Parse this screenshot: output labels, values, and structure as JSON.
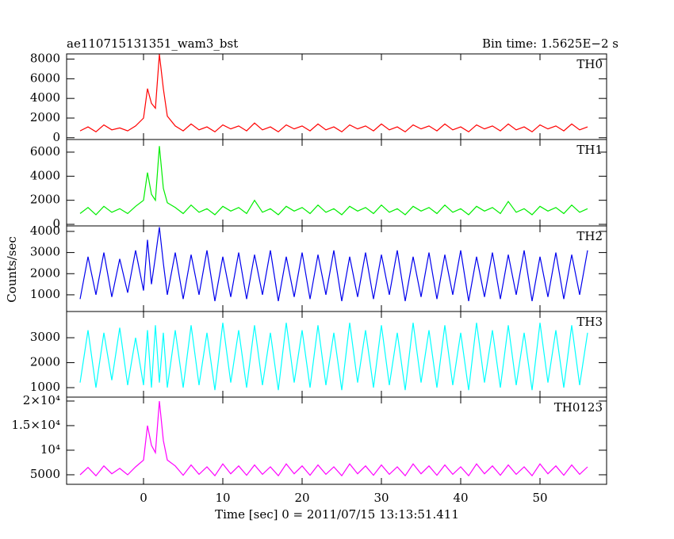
{
  "chart_data": [
    {
      "type": "line",
      "title": "ae110715131351_wam3_bst",
      "subtitle": "Bin time: 1.5625E−2 s",
      "x": [
        -8,
        -7,
        -6,
        -5,
        -4,
        -3,
        -2,
        -1,
        0,
        0.5,
        1,
        1.5,
        2,
        2.5,
        3,
        4,
        5,
        6,
        7,
        8,
        9,
        10,
        11,
        12,
        13,
        14,
        15,
        16,
        17,
        18,
        19,
        20,
        21,
        22,
        23,
        24,
        25,
        26,
        27,
        28,
        29,
        30,
        31,
        32,
        33,
        34,
        35,
        36,
        37,
        38,
        39,
        40,
        41,
        42,
        43,
        44,
        45,
        46,
        47,
        48,
        49,
        50,
        51,
        52,
        53,
        54,
        55,
        56
      ],
      "series": [
        {
          "name": "TH0",
          "color": "#ff0000",
          "values": [
            700,
            1100,
            600,
            1300,
            800,
            1000,
            700,
            1200,
            2000,
            5000,
            3500,
            3000,
            8500,
            5000,
            2200,
            1200,
            700,
            1400,
            800,
            1100,
            600,
            1300,
            900,
            1200,
            700,
            1500,
            800,
            1100,
            600,
            1300,
            900,
            1200,
            700,
            1400,
            800,
            1100,
            600,
            1300,
            900,
            1200,
            700,
            1400,
            800,
            1100,
            600,
            1300,
            900,
            1200,
            700,
            1400,
            800,
            1100,
            600,
            1300,
            900,
            1200,
            700,
            1400,
            800,
            1100,
            600,
            1300,
            900,
            1200,
            700,
            1400,
            800,
            1100
          ]
        }
      ],
      "ylim": [
        -180,
        8530
      ],
      "yticks": [
        0,
        2000,
        4000,
        6000,
        8000
      ]
    },
    {
      "type": "line",
      "x": [
        -8,
        -7,
        -6,
        -5,
        -4,
        -3,
        -2,
        -1,
        0,
        0.5,
        1,
        1.5,
        2,
        2.5,
        3,
        4,
        5,
        6,
        7,
        8,
        9,
        10,
        11,
        12,
        13,
        14,
        15,
        16,
        17,
        18,
        19,
        20,
        21,
        22,
        23,
        24,
        25,
        26,
        27,
        28,
        29,
        30,
        31,
        32,
        33,
        34,
        35,
        36,
        37,
        38,
        39,
        40,
        41,
        42,
        43,
        44,
        45,
        46,
        47,
        48,
        49,
        50,
        51,
        52,
        53,
        54,
        55,
        56
      ],
      "series": [
        {
          "name": "TH1",
          "color": "#00ee00",
          "values": [
            900,
            1400,
            800,
            1500,
            1000,
            1300,
            900,
            1500,
            2000,
            4300,
            2500,
            2000,
            6500,
            3000,
            1800,
            1400,
            900,
            1600,
            1000,
            1300,
            800,
            1500,
            1100,
            1400,
            900,
            2000,
            1000,
            1300,
            800,
            1500,
            1100,
            1400,
            900,
            1600,
            1000,
            1300,
            800,
            1500,
            1100,
            1400,
            900,
            1600,
            1000,
            1300,
            800,
            1500,
            1100,
            1400,
            900,
            1600,
            1000,
            1300,
            800,
            1500,
            1100,
            1400,
            900,
            1900,
            1000,
            1300,
            800,
            1500,
            1100,
            1400,
            900,
            1600,
            1000,
            1300
          ]
        }
      ],
      "ylim": [
        -130,
        7050
      ],
      "yticks": [
        0,
        2000,
        4000,
        6000
      ]
    },
    {
      "type": "line",
      "ylabel": "Counts/sec",
      "x": [
        -8,
        -7,
        -6,
        -5,
        -4,
        -3,
        -2,
        -1,
        0,
        0.5,
        1,
        1.5,
        2,
        2.5,
        3,
        4,
        5,
        6,
        7,
        8,
        9,
        10,
        11,
        12,
        13,
        14,
        15,
        16,
        17,
        18,
        19,
        20,
        21,
        22,
        23,
        24,
        25,
        26,
        27,
        28,
        29,
        30,
        31,
        32,
        33,
        34,
        35,
        36,
        37,
        38,
        39,
        40,
        41,
        42,
        43,
        44,
        45,
        46,
        47,
        48,
        49,
        50,
        51,
        52,
        53,
        54,
        55,
        56
      ],
      "series": [
        {
          "name": "TH2",
          "color": "#0000ee",
          "values": [
            800,
            2800,
            1000,
            3000,
            900,
            2700,
            1100,
            3100,
            1200,
            3600,
            1500,
            2800,
            4200,
            2500,
            1000,
            3000,
            800,
            2900,
            1000,
            3100,
            700,
            2800,
            900,
            3000,
            800,
            2900,
            1000,
            3100,
            700,
            2800,
            900,
            3000,
            800,
            2900,
            1000,
            3100,
            700,
            2800,
            900,
            3000,
            800,
            2900,
            1000,
            3100,
            700,
            2800,
            900,
            3000,
            800,
            2900,
            1000,
            3100,
            700,
            2800,
            900,
            3000,
            800,
            2900,
            1000,
            3100,
            700,
            2800,
            900,
            3000,
            800,
            2900,
            1000,
            3100
          ]
        }
      ],
      "ylim": [
        210,
        4260
      ],
      "yticks": [
        1000,
        2000,
        3000,
        4000
      ]
    },
    {
      "type": "line",
      "x": [
        -8,
        -7,
        -6,
        -5,
        -4,
        -3,
        -2,
        -1,
        0,
        0.5,
        1,
        1.5,
        2,
        2.5,
        3,
        4,
        5,
        6,
        7,
        8,
        9,
        10,
        11,
        12,
        13,
        14,
        15,
        16,
        17,
        18,
        19,
        20,
        21,
        22,
        23,
        24,
        25,
        26,
        27,
        28,
        29,
        30,
        31,
        32,
        33,
        34,
        35,
        36,
        37,
        38,
        39,
        40,
        41,
        42,
        43,
        44,
        45,
        46,
        47,
        48,
        49,
        50,
        51,
        52,
        53,
        54,
        55,
        56
      ],
      "series": [
        {
          "name": "TH3",
          "color": "#00ffff",
          "values": [
            1200,
            3300,
            1000,
            3200,
            1300,
            3400,
            1100,
            3000,
            1100,
            3300,
            1000,
            3500,
            1200,
            3200,
            1000,
            3300,
            1000,
            3500,
            1100,
            3200,
            900,
            3600,
            1200,
            3300,
            1000,
            3500,
            1100,
            3200,
            900,
            3600,
            1200,
            3300,
            1000,
            3500,
            1100,
            3200,
            900,
            3600,
            1200,
            3300,
            1000,
            3500,
            1100,
            3200,
            900,
            3600,
            1200,
            3300,
            1000,
            3500,
            1100,
            3200,
            900,
            3600,
            1200,
            3300,
            1000,
            3500,
            1100,
            3200,
            900,
            3600,
            1200,
            3300,
            1000,
            3500,
            1100,
            3200
          ]
        }
      ],
      "ylim": [
        620,
        4050
      ],
      "yticks": [
        1000,
        2000,
        3000
      ]
    },
    {
      "type": "line",
      "xlabel": "Time [sec] 0 = 2011/07/15 13:13:51.411",
      "x": [
        -8,
        -7,
        -6,
        -5,
        -4,
        -3,
        -2,
        -1,
        0,
        0.5,
        1,
        1.5,
        2,
        2.5,
        3,
        4,
        5,
        6,
        7,
        8,
        9,
        10,
        11,
        12,
        13,
        14,
        15,
        16,
        17,
        18,
        19,
        20,
        21,
        22,
        23,
        24,
        25,
        26,
        27,
        28,
        29,
        30,
        31,
        32,
        33,
        34,
        35,
        36,
        37,
        38,
        39,
        40,
        41,
        42,
        43,
        44,
        45,
        46,
        47,
        48,
        49,
        50,
        51,
        52,
        53,
        54,
        55,
        56
      ],
      "series": [
        {
          "name": "TH0123",
          "color": "#ff00ff",
          "values": [
            5000,
            6500,
            4800,
            6800,
            5200,
            6300,
            5000,
            6600,
            8000,
            15000,
            11000,
            9500,
            20000,
            12000,
            8000,
            6800,
            4900,
            7000,
            5100,
            6600,
            4800,
            7200,
            5200,
            6800,
            4900,
            7000,
            5100,
            6600,
            4800,
            7200,
            5200,
            6800,
            4900,
            7000,
            5100,
            6600,
            4800,
            7200,
            5200,
            6800,
            4900,
            7000,
            5100,
            6600,
            4800,
            7200,
            5200,
            6800,
            4900,
            7000,
            5100,
            6600,
            4800,
            7200,
            5200,
            6800,
            4900,
            7000,
            5100,
            6600,
            4800,
            7200,
            5200,
            6800,
            4900,
            7000,
            5100,
            6600
          ]
        }
      ],
      "ylim": [
        3060,
        20800
      ],
      "yticks": [
        5000,
        {
          "value": 10000,
          "label": "10⁴"
        },
        {
          "value": 15000,
          "label": "1.5×10⁴"
        },
        {
          "value": 20000,
          "label": "2×10⁴"
        }
      ],
      "xlim": [
        -9.7,
        58.4
      ],
      "xticks": [
        0,
        10,
        20,
        30,
        40,
        50
      ]
    }
  ]
}
